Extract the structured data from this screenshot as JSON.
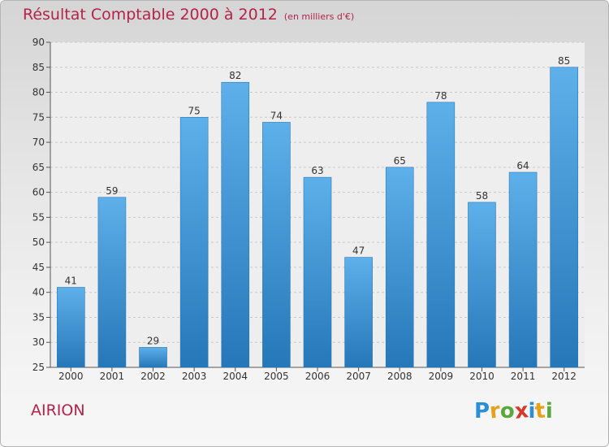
{
  "chart_data": {
    "type": "bar",
    "title": "Résultat Comptable 2000 à 2012",
    "subtitle": "(en milliers d'€)",
    "categories": [
      "2000",
      "2001",
      "2002",
      "2003",
      "2004",
      "2005",
      "2006",
      "2007",
      "2008",
      "2009",
      "2010",
      "2011",
      "2012"
    ],
    "values": [
      41,
      59,
      29,
      75,
      82,
      74,
      63,
      47,
      65,
      78,
      58,
      64,
      85
    ],
    "ylim": [
      25,
      90
    ],
    "yticks": [
      25,
      30,
      35,
      40,
      45,
      50,
      55,
      60,
      65,
      70,
      75,
      80,
      85,
      90
    ],
    "xlabel": "",
    "ylabel": "",
    "grid": true,
    "bar_color": "#3a8fd4"
  },
  "footer": {
    "commune": "AIRION",
    "logo_letters": [
      "P",
      "r",
      "o",
      "x",
      "i",
      "t",
      "i"
    ],
    "logo_colors": [
      "#2a8fd6",
      "#e6a019",
      "#5aa83c",
      "#d63a2a",
      "#2a8fd6",
      "#e6a019",
      "#5aa83c"
    ]
  },
  "colors": {
    "accent": "#b3234a"
  }
}
